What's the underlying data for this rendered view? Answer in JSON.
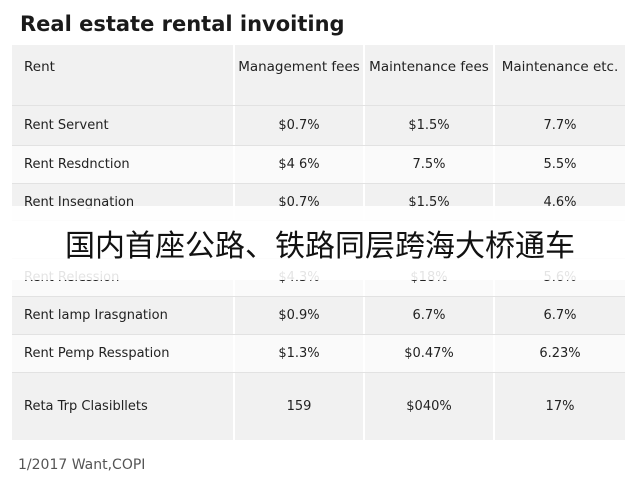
{
  "header": {
    "title": "Real estate rental invoiting"
  },
  "table": {
    "columns": [
      "Rent",
      "Management fees",
      "Maintenance fees",
      "Maintenance etc."
    ],
    "rows": [
      [
        "Rent Servent",
        "$0.7%",
        "$1.5%",
        "7.7%"
      ],
      [
        "Rent Resdnction",
        "$4 6%",
        "7.5%",
        "5.5%"
      ],
      [
        "Rent Insegnation",
        "$0.7%",
        "$1.5%",
        "4.6%"
      ],
      [
        "Rent Relession",
        "$4.3%",
        "$18%",
        "5.6%"
      ],
      [
        "Rent lamp Irasgnation",
        "$0.9%",
        "6.7%",
        "6.7%"
      ],
      [
        "Rent Pemp Resspation",
        "$1.3%",
        "$0.47%",
        "6.23%"
      ],
      [
        "Reta Trp Clasibllets",
        "159",
        "$040%",
        "17%"
      ]
    ]
  },
  "footer": {
    "text": "1/2017 Want,COPI"
  },
  "banner": {
    "text": "国内首座公路、铁路同层跨海大桥通车"
  }
}
